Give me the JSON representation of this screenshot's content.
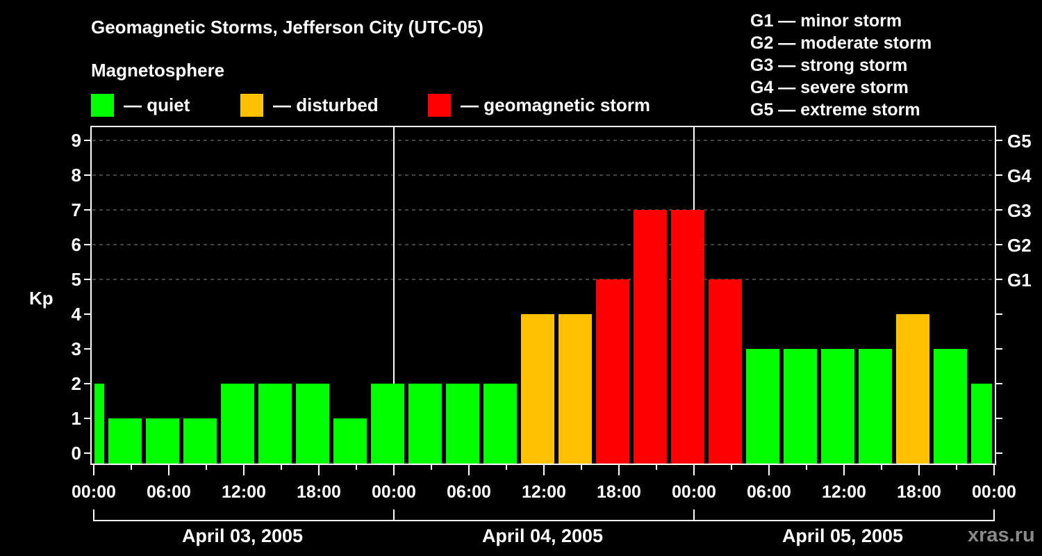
{
  "header": {
    "title": "Geomagnetic Storms, Jefferson City (UTC-05)",
    "subtitle": "Magnetosphere"
  },
  "legend": [
    {
      "label": "— quiet",
      "color": "#00ff00"
    },
    {
      "label": "— disturbed",
      "color": "#ffc000"
    },
    {
      "label": "— geomagnetic storm",
      "color": "#ff0000"
    }
  ],
  "g_scale_legend": [
    "G1 — minor storm",
    "G2 — moderate storm",
    "G3 — strong storm",
    "G4 — severe storm",
    "G5 — extreme storm"
  ],
  "watermark": "xras.ru",
  "chart_data": {
    "type": "bar",
    "title": "Geomagnetic Storms, Jefferson City (UTC-05)",
    "ylabel": "Kp",
    "ylim": [
      0,
      9
    ],
    "yticks": [
      0,
      1,
      2,
      3,
      4,
      5,
      6,
      7,
      8,
      9
    ],
    "y2_labels": [
      {
        "kp": 5,
        "label": "G1"
      },
      {
        "kp": 6,
        "label": "G2"
      },
      {
        "kp": 7,
        "label": "G3"
      },
      {
        "kp": 8,
        "label": "G4"
      },
      {
        "kp": 9,
        "label": "G5"
      }
    ],
    "grid": "dashed horizontal at Kp 5-9",
    "xtick_labels": [
      "00:00",
      "06:00",
      "12:00",
      "18:00",
      "00:00",
      "06:00",
      "12:00",
      "18:00",
      "00:00",
      "06:00",
      "12:00",
      "18:00",
      "00:00"
    ],
    "day_labels": [
      "April 03, 2005",
      "April 04, 2005",
      "April 05, 2005"
    ],
    "bin_hours": 3,
    "thresholds": {
      "quiet_max": 3,
      "disturbed": 4,
      "storm_min": 5
    },
    "colors": {
      "quiet": "#00ff00",
      "disturbed": "#ffc000",
      "storm": "#ff0000"
    },
    "values": [
      2,
      1,
      1,
      1,
      2,
      2,
      2,
      1,
      2,
      2,
      2,
      2,
      4,
      4,
      5,
      7,
      7,
      5,
      3,
      3,
      3,
      3,
      4,
      3,
      2
    ],
    "note": "first and last bars are partial bins at the chart edges"
  }
}
